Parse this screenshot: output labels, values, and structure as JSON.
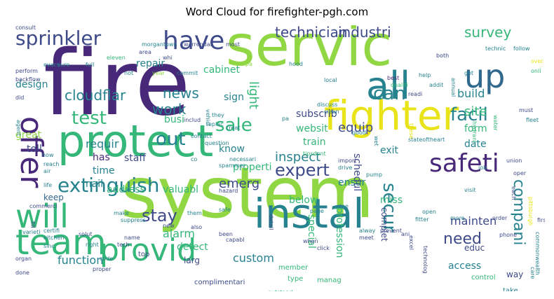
{
  "title": "Word Cloud for firefighter-pgh.com",
  "colors": {
    "purple": "#482878",
    "blue": "#3e4a89",
    "teal": "#26828e",
    "green": "#35b779",
    "lime": "#90d743",
    "yellow": "#e8e419",
    "navy": "#31688e"
  },
  "words": [
    {
      "text": "fire",
      "size": 128,
      "color": "#482878"
    },
    {
      "text": "system",
      "size": 100,
      "color": "#90d743"
    },
    {
      "text": "servic",
      "size": 80,
      "color": "#90d743"
    },
    {
      "text": "protect",
      "size": 62,
      "color": "#35b779"
    },
    {
      "text": "fighter",
      "size": 58,
      "color": "#e8e419"
    },
    {
      "text": "instal",
      "size": 58,
      "color": "#26828e"
    },
    {
      "text": "all",
      "size": 54,
      "color": "#26828e"
    },
    {
      "text": "team",
      "size": 50,
      "color": "#35b779"
    },
    {
      "text": "provid",
      "size": 44,
      "color": "#35b779"
    },
    {
      "text": "up",
      "size": 46,
      "color": "#31688e"
    },
    {
      "text": "offer",
      "size": 44,
      "color": "#482878"
    },
    {
      "text": "will",
      "size": 46,
      "color": "#35b779"
    },
    {
      "text": "safeti",
      "size": 36,
      "color": "#482878"
    },
    {
      "text": "have",
      "size": 36,
      "color": "#3e4a89"
    },
    {
      "text": "sprinkler",
      "size": 28,
      "color": "#3e4a89"
    },
    {
      "text": "extinguish",
      "size": 28,
      "color": "#26828e"
    },
    {
      "text": "technician",
      "size": 20,
      "color": "#3e4a89"
    },
    {
      "text": "industri",
      "size": 20,
      "color": "#3e4a89"
    },
    {
      "text": "survey",
      "size": 20,
      "color": "#35b779"
    },
    {
      "text": "can",
      "size": 26,
      "color": "#26828e"
    },
    {
      "text": "facil",
      "size": 26,
      "color": "#26828e"
    },
    {
      "text": "test",
      "size": 26,
      "color": "#35b779"
    },
    {
      "text": "sale",
      "size": 26,
      "color": "#35b779"
    },
    {
      "text": "out",
      "size": 26,
      "color": "#26828e"
    },
    {
      "text": "news",
      "size": 20,
      "color": "#26828e"
    },
    {
      "text": "cloudflar",
      "size": 20,
      "color": "#26828e"
    },
    {
      "text": "work",
      "size": 20,
      "color": "#26828e"
    },
    {
      "text": "secur",
      "size": 26,
      "color": "#26828e"
    },
    {
      "text": "expert",
      "size": 24,
      "color": "#3e4a89"
    },
    {
      "text": "stay",
      "size": 24,
      "color": "#3e4a89"
    },
    {
      "text": "compani",
      "size": 22,
      "color": "#26828e"
    },
    {
      "text": "need",
      "size": 22,
      "color": "#3e4a89"
    },
    {
      "text": "emerg",
      "size": 18,
      "color": "#3e4a89"
    },
    {
      "text": "inspect",
      "size": 18,
      "color": "#26828e"
    },
    {
      "text": "equip",
      "size": 18,
      "color": "#3e4a89"
    },
    {
      "text": "light",
      "size": 18,
      "color": "#35b779"
    },
    {
      "text": "site",
      "size": 18,
      "color": "#35b779"
    },
    {
      "text": "build",
      "size": 16,
      "color": "#26828e"
    },
    {
      "text": "requir",
      "size": 16,
      "color": "#26828e"
    },
    {
      "text": "mainten",
      "size": 16,
      "color": "#3e4a89"
    },
    {
      "text": "custom",
      "size": 16,
      "color": "#26828e"
    },
    {
      "text": "access",
      "size": 14,
      "color": "#26828e"
    },
    {
      "text": "alarm",
      "size": 16,
      "color": "#35b779"
    },
    {
      "text": "detect",
      "size": 14,
      "color": "#35b779"
    },
    {
      "text": "function",
      "size": 16,
      "color": "#26828e"
    },
    {
      "text": "address",
      "size": 14,
      "color": "#35b779"
    },
    {
      "text": "valuabl",
      "size": 14,
      "color": "#35b779"
    },
    {
      "text": "design",
      "size": 14,
      "color": "#26828e"
    },
    {
      "text": "cabinet",
      "size": 14,
      "color": "#35b779"
    },
    {
      "text": "repair",
      "size": 14,
      "color": "#26828e"
    },
    {
      "text": "sign",
      "size": 14,
      "color": "#26828e"
    },
    {
      "text": "busi",
      "size": 14,
      "color": "#35b779"
    },
    {
      "text": "great",
      "size": 14,
      "color": "#90d743"
    },
    {
      "text": "has",
      "size": 14,
      "color": "#482878"
    },
    {
      "text": "staff",
      "size": 14,
      "color": "#3e4a89"
    },
    {
      "text": "toll",
      "size": 14,
      "color": "#3e4a89"
    },
    {
      "text": "time",
      "size": 14,
      "color": "#26828e"
    },
    {
      "text": "mail",
      "size": 14,
      "color": "#26828e"
    },
    {
      "text": "know",
      "size": 14,
      "color": "#26828e"
    },
    {
      "text": "properti",
      "size": 14,
      "color": "#35b779"
    },
    {
      "text": "train",
      "size": 14,
      "color": "#35b779"
    },
    {
      "text": "subscrib",
      "size": 14,
      "color": "#3e4a89"
    },
    {
      "text": "websit",
      "size": 14,
      "color": "#35b779"
    },
    {
      "text": "form",
      "size": 14,
      "color": "#35b779"
    },
    {
      "text": "date",
      "size": 14,
      "color": "#26828e"
    },
    {
      "text": "exit",
      "size": 14,
      "color": "#26828e"
    },
    {
      "text": "ensur",
      "size": 14,
      "color": "#26828e"
    },
    {
      "text": "schedul",
      "size": 14,
      "color": "#3e4a89"
    },
    {
      "text": "below",
      "size": 14,
      "color": "#35b779"
    },
    {
      "text": "miss",
      "size": 14,
      "color": "#35b779"
    },
    {
      "text": "keep",
      "size": 12,
      "color": "#31688e"
    },
    {
      "text": "profession",
      "size": 14,
      "color": "#35b779"
    },
    {
      "text": "special",
      "size": 14,
      "color": "#35b779"
    },
    {
      "text": "complet",
      "size": 12,
      "color": "#3e4a89"
    },
    {
      "text": "way",
      "size": 12,
      "color": "#3e4a89"
    },
    {
      "text": "control",
      "size": 10,
      "color": "#35b779"
    },
    {
      "text": "educ",
      "size": 12,
      "color": "#3e4a89"
    },
    {
      "text": "larg",
      "size": 12,
      "color": "#3e4a89"
    },
    {
      "text": "top",
      "size": 10,
      "color": "#3e4a89"
    },
    {
      "text": "member",
      "size": 10,
      "color": "#35b779"
    },
    {
      "text": "type",
      "size": 10,
      "color": "#35b779"
    },
    {
      "text": "manag",
      "size": 10,
      "color": "#35b779"
    },
    {
      "text": "process",
      "size": 8,
      "color": "#35b779"
    },
    {
      "text": "complimentari",
      "size": 10,
      "color": "#3e4a89"
    },
    {
      "text": "product",
      "size": 8,
      "color": "#35b779"
    },
    {
      "text": "outstand",
      "size": 8,
      "color": "#35b779"
    },
    {
      "text": "take",
      "size": 10,
      "color": "#26828e"
    },
    {
      "text": "care",
      "size": 8,
      "color": "#26828e"
    },
    {
      "text": "commonwealth",
      "size": 8,
      "color": "#26828e"
    },
    {
      "text": "pittsburgh",
      "size": 8,
      "color": "#e8e419"
    },
    {
      "text": "perform",
      "size": 8,
      "color": "#3e4a89"
    },
    {
      "text": "backflow",
      "size": 8,
      "color": "#3e4a89"
    },
    {
      "text": "evacu",
      "size": 8,
      "color": "#26828e"
    },
    {
      "text": "morgantown",
      "size": 8,
      "color": "#26828e"
    },
    {
      "text": "warrendal",
      "size": 8,
      "color": "#3e4a89"
    },
    {
      "text": "most",
      "size": 8,
      "color": "#3e4a89"
    },
    {
      "text": "area",
      "size": 8,
      "color": "#3e4a89"
    },
    {
      "text": "sure",
      "size": 8,
      "color": "#26828e"
    },
    {
      "text": "full",
      "size": 8,
      "color": "#26828e"
    },
    {
      "text": "eleven",
      "size": 8,
      "color": "#35b779"
    },
    {
      "text": "whi",
      "size": 8,
      "color": "#3e4a89"
    },
    {
      "text": "not",
      "size": 8,
      "color": "#26828e"
    },
    {
      "text": "year",
      "size": 8,
      "color": "#90d743"
    },
    {
      "text": "commit",
      "size": 8,
      "color": "#26828e"
    },
    {
      "text": "nfpa",
      "size": 8,
      "color": "#90d743"
    },
    {
      "text": "hood",
      "size": 8,
      "color": "#26828e"
    },
    {
      "text": "both",
      "size": 8,
      "color": "#3e4a89"
    },
    {
      "text": "technic",
      "size": 8,
      "color": "#26828e"
    },
    {
      "text": "follow",
      "size": 8,
      "color": "#26828e"
    },
    {
      "text": "over",
      "size": 8,
      "color": "#e8e419"
    },
    {
      "text": "onli",
      "size": 8,
      "color": "#35b779"
    },
    {
      "text": "local",
      "size": 8,
      "color": "#26828e"
    },
    {
      "text": "best",
      "size": 8,
      "color": "#482878"
    },
    {
      "text": "qualiti",
      "size": 8,
      "color": "#35b779"
    },
    {
      "text": "readi",
      "size": 8,
      "color": "#3e4a89"
    },
    {
      "text": "help",
      "size": 8,
      "color": "#26828e"
    },
    {
      "text": "addit",
      "size": 8,
      "color": "#26828e"
    },
    {
      "text": "annual",
      "size": 8,
      "color": "#26828e"
    },
    {
      "text": "got",
      "size": 8,
      "color": "#26828e"
    },
    {
      "text": "discuss",
      "size": 8,
      "color": "#26828e"
    },
    {
      "text": "clean",
      "size": 8,
      "color": "#26828e"
    },
    {
      "text": "pa",
      "size": 8,
      "color": "#26828e"
    },
    {
      "text": "hydrant",
      "size": 8,
      "color": "#35b779"
    },
    {
      "text": "water",
      "size": 8,
      "color": "#35b779"
    },
    {
      "text": "fleet",
      "size": 8,
      "color": "#26828e"
    },
    {
      "text": "must",
      "size": 8,
      "color": "#3e4a89"
    },
    {
      "text": "did",
      "size": 8,
      "color": "#3e4a89"
    },
    {
      "text": "agent",
      "size": 8,
      "color": "#26828e"
    },
    {
      "text": "includ",
      "size": 8,
      "color": "#3e4a89"
    },
    {
      "text": "they",
      "size": 8,
      "color": "#26828e"
    },
    {
      "text": "replac",
      "size": 8,
      "color": "#26828e"
    },
    {
      "text": "creat",
      "size": 8,
      "color": "#26828e"
    },
    {
      "text": "contact",
      "size": 8,
      "color": "#26828e"
    },
    {
      "text": "question",
      "size": 8,
      "color": "#26828e"
    },
    {
      "text": "vehicl",
      "size": 8,
      "color": "#26828e"
    },
    {
      "text": "tipsdont",
      "size": 8,
      "color": "#35b779"
    },
    {
      "text": "good",
      "size": 8,
      "color": "#26828e"
    },
    {
      "text": "wet",
      "size": 8,
      "color": "#26828e"
    },
    {
      "text": "stateoftheart",
      "size": 8,
      "color": "#26828e"
    },
    {
      "text": "these",
      "size": 8,
      "color": "#e8e419"
    },
    {
      "text": "how",
      "size": 8,
      "color": "#26828e"
    },
    {
      "text": "reach",
      "size": 8,
      "color": "#26828e"
    },
    {
      "text": "co",
      "size": 8,
      "color": "#26828e"
    },
    {
      "text": "spammer",
      "size": 8,
      "color": "#26828e"
    },
    {
      "text": "necessari",
      "size": 8,
      "color": "#26828e"
    },
    {
      "text": "air",
      "size": 8,
      "color": "#26828e"
    },
    {
      "text": "life",
      "size": 8,
      "color": "#26828e"
    },
    {
      "text": "hazard",
      "size": 8,
      "color": "#3e4a89"
    },
    {
      "text": "import",
      "size": 8,
      "color": "#3e4a89"
    },
    {
      "text": "drive",
      "size": 8,
      "color": "#26828e"
    },
    {
      "text": "pump",
      "size": 8,
      "color": "#26828e"
    },
    {
      "text": "job",
      "size": 8,
      "color": "#26828e"
    },
    {
      "text": "union",
      "size": 8,
      "color": "#3e4a89"
    },
    {
      "text": "oper",
      "size": 8,
      "color": "#3e4a89"
    },
    {
      "text": "each",
      "size": 8,
      "color": "#3e4a89"
    },
    {
      "text": "make",
      "size": 8,
      "color": "#26828e"
    },
    {
      "text": "suppress",
      "size": 8,
      "color": "#26828e"
    },
    {
      "text": "safe",
      "size": 8,
      "color": "#26828e"
    },
    {
      "text": "page",
      "size": 8,
      "color": "#26828e"
    },
    {
      "text": "doe",
      "size": 8,
      "color": "#26828e"
    },
    {
      "text": "open",
      "size": 8,
      "color": "#26828e"
    },
    {
      "text": "fitter",
      "size": 8,
      "color": "#26828e"
    },
    {
      "text": "more",
      "size": 8,
      "color": "#26828e"
    },
    {
      "text": "order",
      "size": 8,
      "color": "#3e4a89"
    },
    {
      "text": "first",
      "size": 8,
      "color": "#3e4a89"
    },
    {
      "text": "visit",
      "size": 8,
      "color": "#26828e"
    },
    {
      "text": "varieti",
      "size": 8,
      "color": "#26828e"
    },
    {
      "text": "fill",
      "size": 8,
      "color": "#3e4a89"
    },
    {
      "text": "them",
      "size": 8,
      "color": "#26828e"
    },
    {
      "text": "new",
      "size": 8,
      "color": "#3e4a89"
    },
    {
      "text": "certifi",
      "size": 8,
      "color": "#26828e"
    },
    {
      "text": "solut",
      "size": 8,
      "color": "#3e4a89"
    },
    {
      "text": "kitchen",
      "size": 8,
      "color": "#26828e"
    },
    {
      "text": "sinc",
      "size": 8,
      "color": "#26828e"
    },
    {
      "text": "right",
      "size": 8,
      "color": "#26828e"
    },
    {
      "text": "tech",
      "size": 8,
      "color": "#3e4a89"
    },
    {
      "text": "name",
      "size": 8,
      "color": "#3e4a89"
    },
    {
      "text": "also",
      "size": 8,
      "color": "#3e4a89"
    },
    {
      "text": "been",
      "size": 8,
      "color": "#3e4a89"
    },
    {
      "text": "when",
      "size": 8,
      "color": "#3e4a89"
    },
    {
      "text": "click",
      "size": 8,
      "color": "#3e4a89"
    },
    {
      "text": "detail",
      "size": 8,
      "color": "#3e4a89"
    },
    {
      "text": "alway",
      "size": 8,
      "color": "#26828e"
    },
    {
      "text": "meet",
      "size": 8,
      "color": "#3e4a89"
    },
    {
      "text": "prevent",
      "size": 8,
      "color": "#3e4a89"
    },
    {
      "text": "ani",
      "size": 8,
      "color": "#3e4a89"
    },
    {
      "text": "excel",
      "size": 8,
      "color": "#3e4a89"
    },
    {
      "text": "technolog",
      "size": 8,
      "color": "#3e4a89"
    },
    {
      "text": "organ",
      "size": 8,
      "color": "#3e4a89"
    },
    {
      "text": "code",
      "size": 8,
      "color": "#26828e"
    },
    {
      "text": "proper",
      "size": 8,
      "color": "#3e4a89"
    },
    {
      "text": "done",
      "size": 8,
      "color": "#3e4a89"
    },
    {
      "text": "commerci",
      "size": 8,
      "color": "#3e4a89"
    },
    {
      "text": "capabl",
      "size": 8,
      "color": "#3e4a89"
    },
    {
      "text": "phone",
      "size": 8,
      "color": "#3e4a89"
    },
    {
      "text": "consult",
      "size": 8,
      "color": "#3e4a89"
    }
  ]
}
